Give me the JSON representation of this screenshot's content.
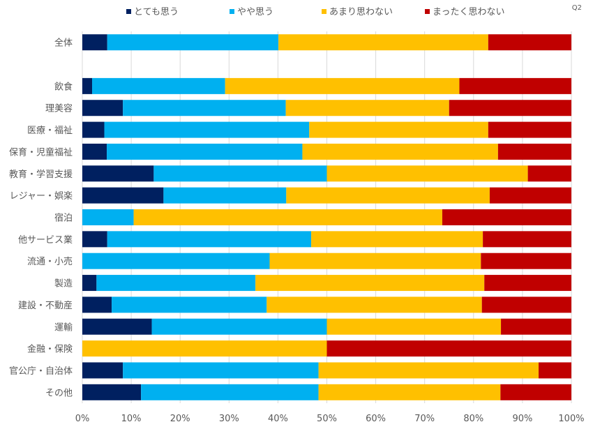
{
  "chart_data": {
    "type": "bar",
    "orientation": "horizontal",
    "stacked": "percent",
    "label": "Q2",
    "categories": [
      "全体",
      "",
      "飲食",
      "理美容",
      "医療・福祉",
      "保育・児童福祉",
      "教育・学習支援",
      "レジャー・娯楽",
      "宿泊",
      "他サービス業",
      "流通・小売",
      "製造",
      "建設・不動産",
      "運輸",
      "金融・保険",
      "官公庁・自治体",
      "その他"
    ],
    "series": [
      {
        "name": "とても思う",
        "color": "#002060",
        "values": [
          5.1,
          null,
          2.0,
          8.3,
          4.5,
          5.0,
          14.6,
          16.6,
          0,
          5.1,
          0,
          2.9,
          6.0,
          14.2,
          0,
          8.3,
          12.0
        ]
      },
      {
        "name": "やや思う",
        "color": "#00B0F0",
        "values": [
          35.0,
          null,
          27.2,
          33.3,
          41.9,
          40.0,
          35.4,
          25.1,
          10.5,
          41.7,
          38.3,
          32.5,
          31.7,
          35.8,
          0,
          40.0,
          36.3
        ]
      },
      {
        "name": "あまり思わない",
        "color": "#FFC000",
        "values": [
          42.9,
          null,
          47.9,
          33.4,
          36.6,
          40.0,
          41.1,
          41.6,
          63.1,
          35.1,
          43.2,
          46.8,
          44.0,
          35.6,
          50.0,
          45.0,
          37.2
        ]
      },
      {
        "name": "まったく思わない",
        "color": "#C00000",
        "values": [
          17.0,
          null,
          22.9,
          25.0,
          17.0,
          15.0,
          8.9,
          16.7,
          26.4,
          18.1,
          18.5,
          17.8,
          18.3,
          14.4,
          50.0,
          6.7,
          14.5
        ]
      }
    ],
    "xlim": [
      0,
      100
    ],
    "xticks": [
      "0%",
      "10%",
      "20%",
      "30%",
      "40%",
      "50%",
      "60%",
      "70%",
      "80%",
      "90%",
      "100%"
    ],
    "grid": true,
    "legend": "top"
  }
}
